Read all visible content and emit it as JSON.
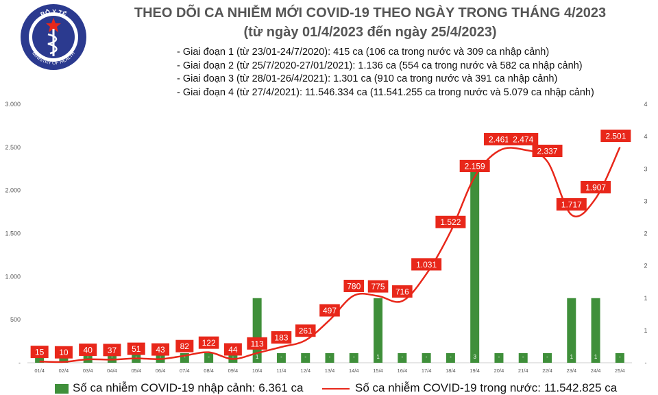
{
  "header": {
    "title": "THEO DÕI CA NHIỄM MỚI COVID-19 THEO NGÀY TRONG THÁNG 4/2023",
    "subtitle": "(từ ngày 01/4/2023 đến ngày 25/4/2023)"
  },
  "logo": {
    "top_text": "BỘ Y TẾ",
    "bottom_text": "MINISTRY OF HEALTH"
  },
  "periods": [
    "- Giai đoạn 1 (từ 23/01-24/7/2020): 415 ca (106 ca trong nước và 309 ca nhập cảnh)",
    "- Giai đoạn 2 (từ 25/7/2020-27/01/2021): 1.136 ca (554 ca trong nước và 582 ca nhập cảnh)",
    "- Giai đoạn 3 (từ 28/01-26/4/2021): 1.301 ca (910 ca trong nước và 391 ca nhập cảnh)",
    "- Giai đoạn 4 (từ 27/4/2021): 11.546.334 ca (11.541.255 ca trong nước và 5.079 ca nhập cảnh)"
  ],
  "legend": {
    "bars": "Số ca nhiễm COVID-19 nhập cảnh: 6.361 ca",
    "line": "Số ca nhiễm COVID-19 trong nước: 11.542.825 ca"
  },
  "colors": {
    "bar": "#3f8f3a",
    "line": "#e8271a",
    "label_bg": "#e8271a",
    "title": "#555555"
  },
  "chart_data": {
    "type": "bar+line",
    "categories": [
      "01/4",
      "02/4",
      "03/4",
      "04/4",
      "05/4",
      "06/4",
      "07/4",
      "08/4",
      "09/4",
      "10/4",
      "11/4",
      "12/4",
      "13/4",
      "14/4",
      "15/4",
      "16/4",
      "17/4",
      "18/4",
      "19/4",
      "20/4",
      "21/4",
      "22/4",
      "23/4",
      "24/4",
      "25/4"
    ],
    "series": [
      {
        "name": "Số ca nhiễm COVID-19 nhập cảnh",
        "type": "bar",
        "axis": "right",
        "values": [
          0,
          0,
          0,
          0,
          0,
          0,
          0,
          0,
          0,
          1,
          0,
          0,
          0,
          0,
          1,
          0,
          0,
          0,
          3,
          0,
          0,
          0,
          1,
          1,
          0
        ],
        "labels": [
          "-",
          "-",
          "-",
          "-",
          "-",
          "-",
          "-",
          "-",
          "-",
          "1",
          "-",
          "-",
          "-",
          "-",
          "1",
          "-",
          "-",
          "-",
          "3",
          "-",
          "-",
          "-",
          "1",
          "1",
          "-"
        ]
      },
      {
        "name": "Số ca nhiễm COVID-19 trong nước",
        "type": "line",
        "axis": "left",
        "values": [
          15,
          10,
          40,
          37,
          51,
          43,
          82,
          122,
          44,
          113,
          183,
          261,
          497,
          780,
          775,
          716,
          1031,
          1522,
          2159,
          2461,
          2474,
          2337,
          1717,
          1907,
          2501
        ],
        "labels": [
          "15",
          "10",
          "40",
          "37",
          "51",
          "43",
          "82",
          "122",
          "44",
          "113",
          "183",
          "261",
          "497",
          "780",
          "775",
          "716",
          "1.031",
          "1.522",
          "2.159",
          "2.461",
          "2.474",
          "2.337",
          "1.717",
          "1.907",
          "2.501"
        ]
      }
    ],
    "y_left": {
      "ylim": [
        0,
        3000
      ],
      "ticks": [
        "-",
        "500",
        "1.000",
        "1.500",
        "2.000",
        "2.500",
        "3.000"
      ]
    },
    "y_right": {
      "ylim": [
        0,
        4
      ],
      "ticks": [
        "-",
        "1",
        "1",
        "2",
        "2",
        "3",
        "3",
        "4",
        "4"
      ]
    },
    "grid": false,
    "legend_position": "bottom"
  }
}
